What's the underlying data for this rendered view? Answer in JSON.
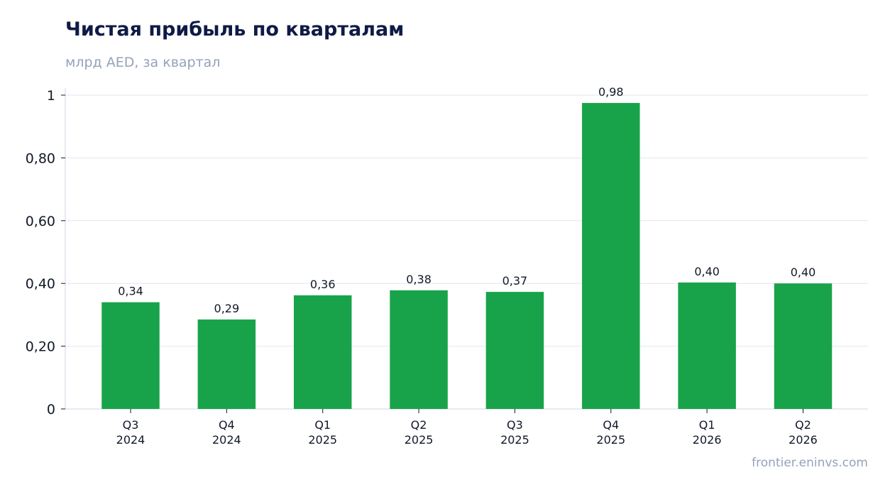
{
  "header": {
    "title": "Чистая прибыль по кварталам",
    "subtitle": "млрд AED, за квартал"
  },
  "footer": {
    "source": "frontier.eninvs.com"
  },
  "colors": {
    "bar": "#18a34a",
    "grid": "#e2e6ef",
    "axis": "#cfd5e0",
    "title": "#0f1b45",
    "text": "#111827",
    "muted": "#94a3b8"
  },
  "chart_data": {
    "type": "bar",
    "title": "Чистая прибыль по кварталам",
    "subtitle": "млрд AED, за квартал",
    "categories": [
      [
        "Q3",
        "2024"
      ],
      [
        "Q4",
        "2024"
      ],
      [
        "Q1",
        "2025"
      ],
      [
        "Q2",
        "2025"
      ],
      [
        "Q3",
        "2025"
      ],
      [
        "Q4",
        "2025"
      ],
      [
        "Q1",
        "2026"
      ],
      [
        "Q2",
        "2026"
      ]
    ],
    "values": [
      0.34,
      0.285,
      0.362,
      0.378,
      0.373,
      0.975,
      0.403,
      0.4
    ],
    "data_labels": [
      "0,34",
      "0,29",
      "0,36",
      "0,38",
      "0,37",
      "0,98",
      "0,40",
      "0,40"
    ],
    "ylim": [
      0,
      1
    ],
    "yticks": [
      0,
      0.2,
      0.4,
      0.6,
      0.8,
      1
    ],
    "ytick_labels": [
      "0",
      "0,20",
      "0,40",
      "0,60",
      "0,80",
      "1"
    ],
    "grid": true,
    "legend": false
  }
}
